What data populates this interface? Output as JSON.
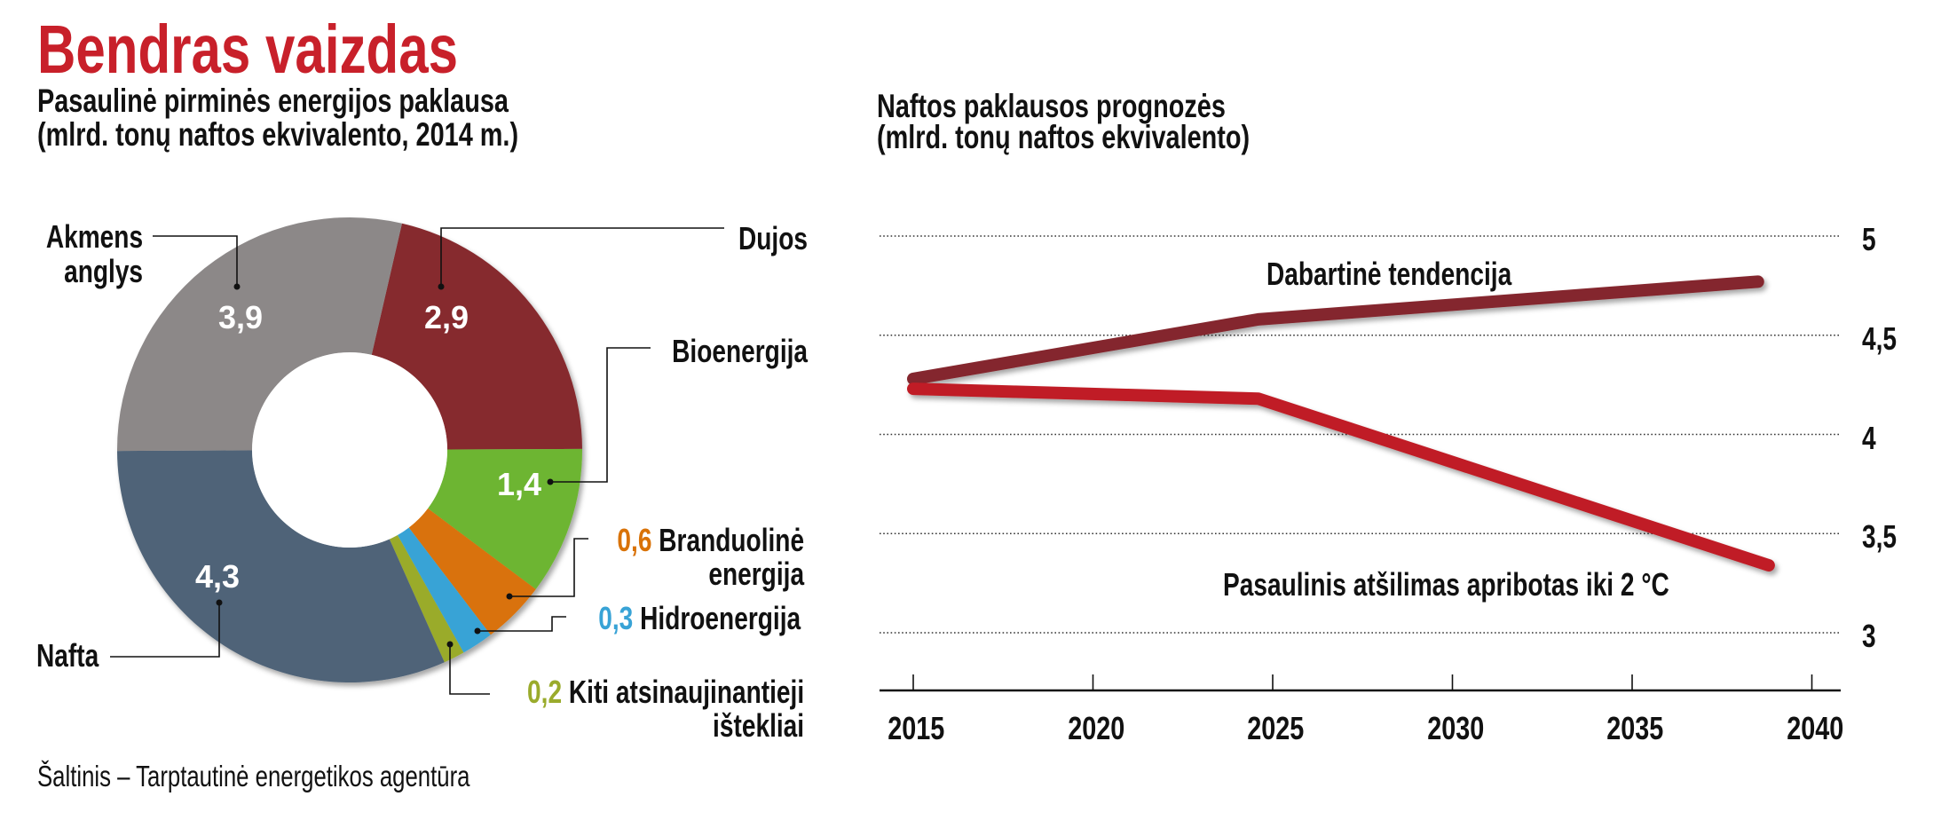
{
  "header": {
    "title": "Bendras vaizdas",
    "title_color": "#c8202a"
  },
  "source": "Šaltinis – Tarptautinė energetikos agentūra",
  "chart_data": [
    {
      "type": "pie",
      "variant": "donut",
      "title": "Pasaulinė pirminės energijos paklausa",
      "subtitle": "(mlrd. tonų naftos ekvivalento, 2014 m.)",
      "slices": [
        {
          "name": "Dujos",
          "value": 2.9,
          "value_label": "2,9",
          "color": "#86292d"
        },
        {
          "name": "Bioenergija",
          "value": 1.4,
          "value_label": "1,4",
          "color": "#6db530"
        },
        {
          "name": "Branduolinė energija",
          "name_line1": "Branduolinė",
          "name_line2": "energija",
          "value": 0.6,
          "value_label": "0,6",
          "color": "#d97207"
        },
        {
          "name": "Hidroenergija",
          "value": 0.3,
          "value_label": "0,3",
          "color": "#38a3d6"
        },
        {
          "name": "Kiti atsinaujinantieji ištekliai",
          "name_line1": "Kiti atsinaujinantieji",
          "name_line2": "ištekliai",
          "value": 0.2,
          "value_label": "0,2",
          "color": "#9aab2c"
        },
        {
          "name": "Nafta",
          "value": 4.3,
          "value_label": "4,3",
          "color": "#506478"
        },
        {
          "name": "Akmens anglys",
          "name_line1": "Akmens",
          "name_line2": "anglys",
          "value": 3.9,
          "value_label": "3,9",
          "color": "#8c8888"
        }
      ]
    },
    {
      "type": "line",
      "title": "Naftos paklausos prognozės",
      "subtitle": "(mlrd. tonų naftos ekvivalento)",
      "x_ticks": [
        2015,
        2020,
        2025,
        2030,
        2035,
        2040
      ],
      "x_tick_labels": [
        "2015",
        "2020",
        "2025",
        "2030",
        "2035",
        "2040"
      ],
      "y_ticks": [
        5,
        4.5,
        4,
        3.5,
        3
      ],
      "y_tick_labels": [
        "5",
        "4,5",
        "4",
        "3,5",
        "3"
      ],
      "ylim": [
        2.85,
        5
      ],
      "xlim": [
        2014,
        2041
      ],
      "grid": true,
      "y_axis_side": "right",
      "series": [
        {
          "name": "Dabartinė tendencija",
          "color": "#84282d",
          "x": [
            2015,
            2024.6,
            2038.5
          ],
          "y": [
            4.28,
            4.58,
            4.77
          ]
        },
        {
          "name": "Pasaulinis atšilimas apribotas iki 2 °C",
          "color": "#c01f25",
          "x": [
            2015,
            2024.6,
            2038.8
          ],
          "y": [
            4.23,
            4.18,
            3.34
          ]
        }
      ]
    }
  ]
}
